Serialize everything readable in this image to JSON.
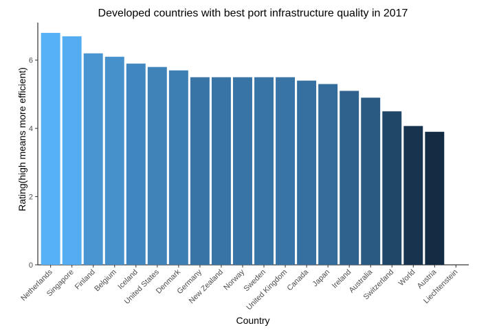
{
  "chart_data": {
    "type": "bar",
    "title": "Developed countries with best port infrastructure quality in 2017",
    "xlabel": "Country",
    "ylabel": "Rating(high means more efficient)",
    "categories": [
      "Netherlands",
      "Singapore",
      "Finland",
      "Belgium",
      "Iceland",
      "United States",
      "Denmark",
      "Germany",
      "New Zealand",
      "Norway",
      "Sweden",
      "United Kingdom",
      "Canada",
      "Japan",
      "Ireland",
      "Australia",
      "Switzerland",
      "World",
      "Austria",
      "Liechtenstein"
    ],
    "values": [
      6.8,
      6.7,
      6.2,
      6.1,
      5.9,
      5.8,
      5.7,
      5.5,
      5.5,
      5.5,
      5.5,
      5.5,
      5.4,
      5.3,
      5.1,
      4.9,
      4.5,
      4.07,
      3.9,
      null
    ],
    "ylim": [
      0,
      7.1
    ],
    "yticks": [
      0,
      2,
      4,
      6
    ],
    "grid": false,
    "legend": "none",
    "color_scale": {
      "low": "#132b43",
      "high": "#56b1f7"
    }
  }
}
